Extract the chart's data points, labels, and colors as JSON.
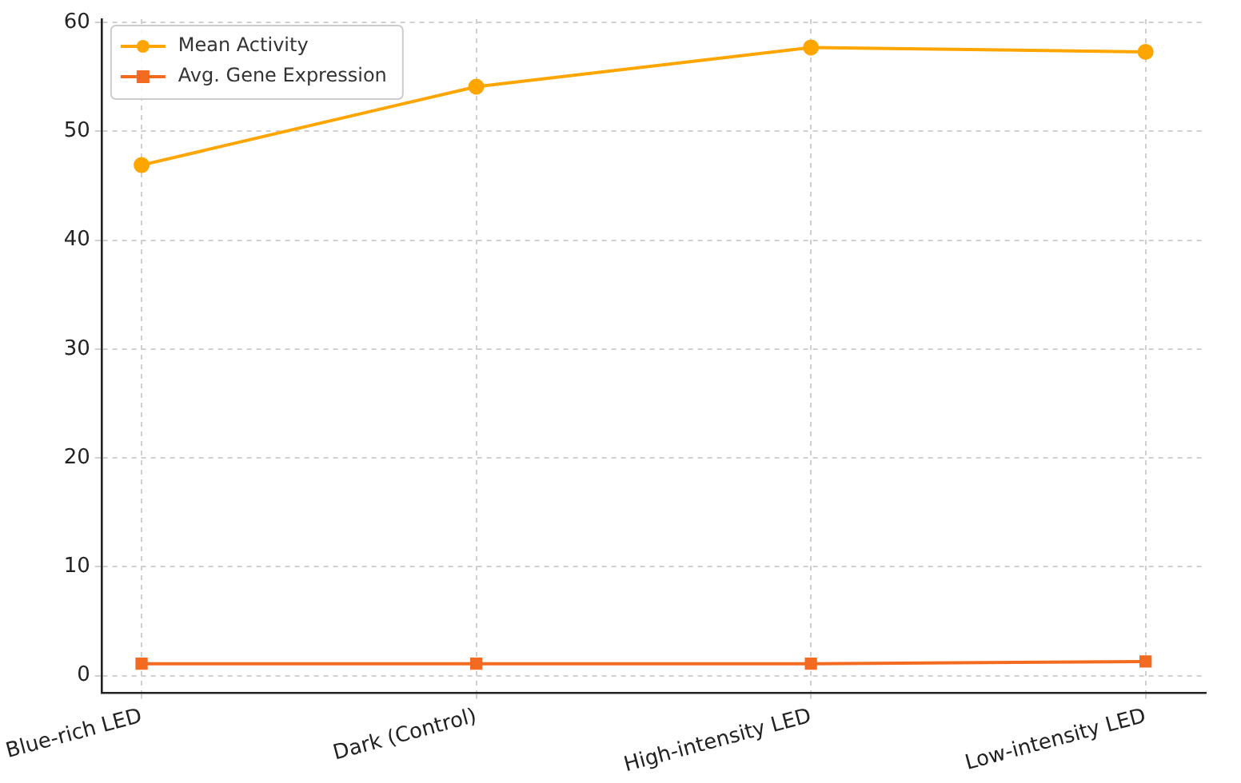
{
  "chart_data": {
    "type": "line",
    "categories": [
      "Blue-rich LED",
      "Dark (Control)",
      "High-intensity LED",
      "Low-intensity LED"
    ],
    "series": [
      {
        "name": "Mean Activity",
        "color": "#ffa500",
        "marker": "circle",
        "values": [
          46.9,
          54.1,
          57.7,
          57.3
        ]
      },
      {
        "name": "Avg. Gene Expression",
        "color": "#f26b21",
        "marker": "square",
        "values": [
          1.1,
          1.1,
          1.1,
          1.3
        ]
      }
    ],
    "ylim": [
      -1.6,
      60.3
    ],
    "yticks": [
      0,
      10,
      20,
      30,
      40,
      50,
      60
    ],
    "grid": true,
    "legend": "top left",
    "line_style": "solid"
  }
}
